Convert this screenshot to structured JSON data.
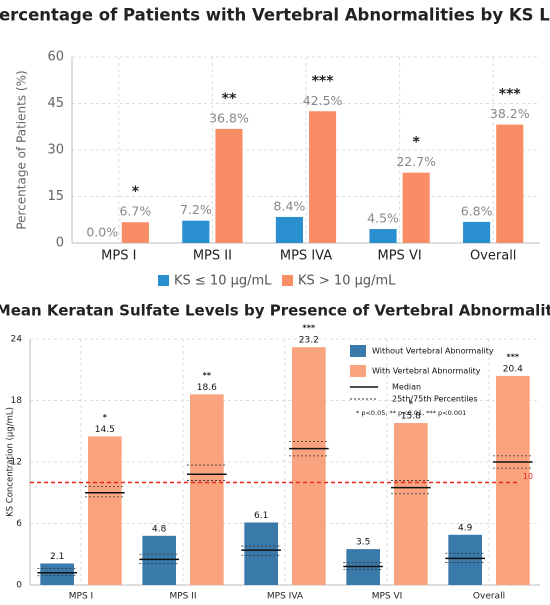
{
  "chart_data": [
    {
      "type": "bar",
      "title": "A: Percentage of Patients with Vertebral Abnormalities by KS Level",
      "y_label": "Percentage of Patients (%)",
      "categories": [
        "MPS I",
        "MPS II",
        "MPS IVA",
        "MPS VI",
        "Overall"
      ],
      "series": [
        {
          "name": "KS ≤ 10 μg/mL",
          "color": "#2a8fcf",
          "values": [
            0.0,
            7.2,
            8.4,
            4.5,
            6.8
          ],
          "value_labels": [
            "0.0%",
            "7.2%",
            "8.4%",
            "4.5%",
            "6.8%"
          ]
        },
        {
          "name": "KS > 10 μg/mL",
          "color": "#f98e66",
          "values": [
            6.7,
            36.8,
            42.5,
            22.7,
            38.2
          ],
          "value_labels": [
            "6.7%",
            "36.8%",
            "42.5%",
            "22.7%",
            "38.2%"
          ]
        }
      ],
      "significance": [
        "*",
        "**",
        "***",
        "*",
        "***"
      ],
      "ylim": [
        0,
        60
      ],
      "yticks": [
        0,
        15,
        30,
        45,
        60
      ],
      "grid": true,
      "legend": "bottom"
    },
    {
      "type": "bar",
      "title": "B: Mean Keratan Sulfate Levels by Presence of Vertebral Abnormalities",
      "y_label": "KS Concentration (μg/mL)",
      "categories": [
        "MPS I",
        "MPS II",
        "MPS IVA",
        "MPS VI",
        "Overall"
      ],
      "series": [
        {
          "name": "Without Vertebral Abnormality",
          "color": "#3a7aab",
          "values": [
            2.1,
            4.8,
            6.1,
            3.5,
            4.9
          ],
          "median": [
            1.2,
            2.5,
            3.4,
            1.8,
            2.6
          ],
          "p25": [
            0.9,
            2.1,
            2.9,
            1.5,
            2.2
          ],
          "p75": [
            1.6,
            3.0,
            3.8,
            2.2,
            3.1
          ]
        },
        {
          "name": "With Vertebral Abnormality",
          "color": "#f9a47f",
          "values": [
            14.5,
            18.6,
            23.2,
            15.8,
            20.4
          ],
          "median": [
            9.0,
            10.8,
            13.3,
            9.5,
            12.0
          ],
          "p25": [
            8.6,
            10.2,
            12.6,
            8.9,
            11.4
          ],
          "p75": [
            9.6,
            11.7,
            14.0,
            10.2,
            12.6
          ]
        }
      ],
      "significance": [
        "*",
        "**",
        "***",
        "*",
        "***"
      ],
      "median_label": "Median",
      "percentile_label": "25th/75th Percentiles",
      "note": "* p<0.05, ** p<0.01, *** p<0.001",
      "reference_line": 10,
      "reference_color": "#e8261c",
      "ylim": [
        0,
        24
      ],
      "yticks": [
        0,
        6,
        12,
        18,
        24
      ],
      "grid": true,
      "legend": "upper right"
    }
  ]
}
